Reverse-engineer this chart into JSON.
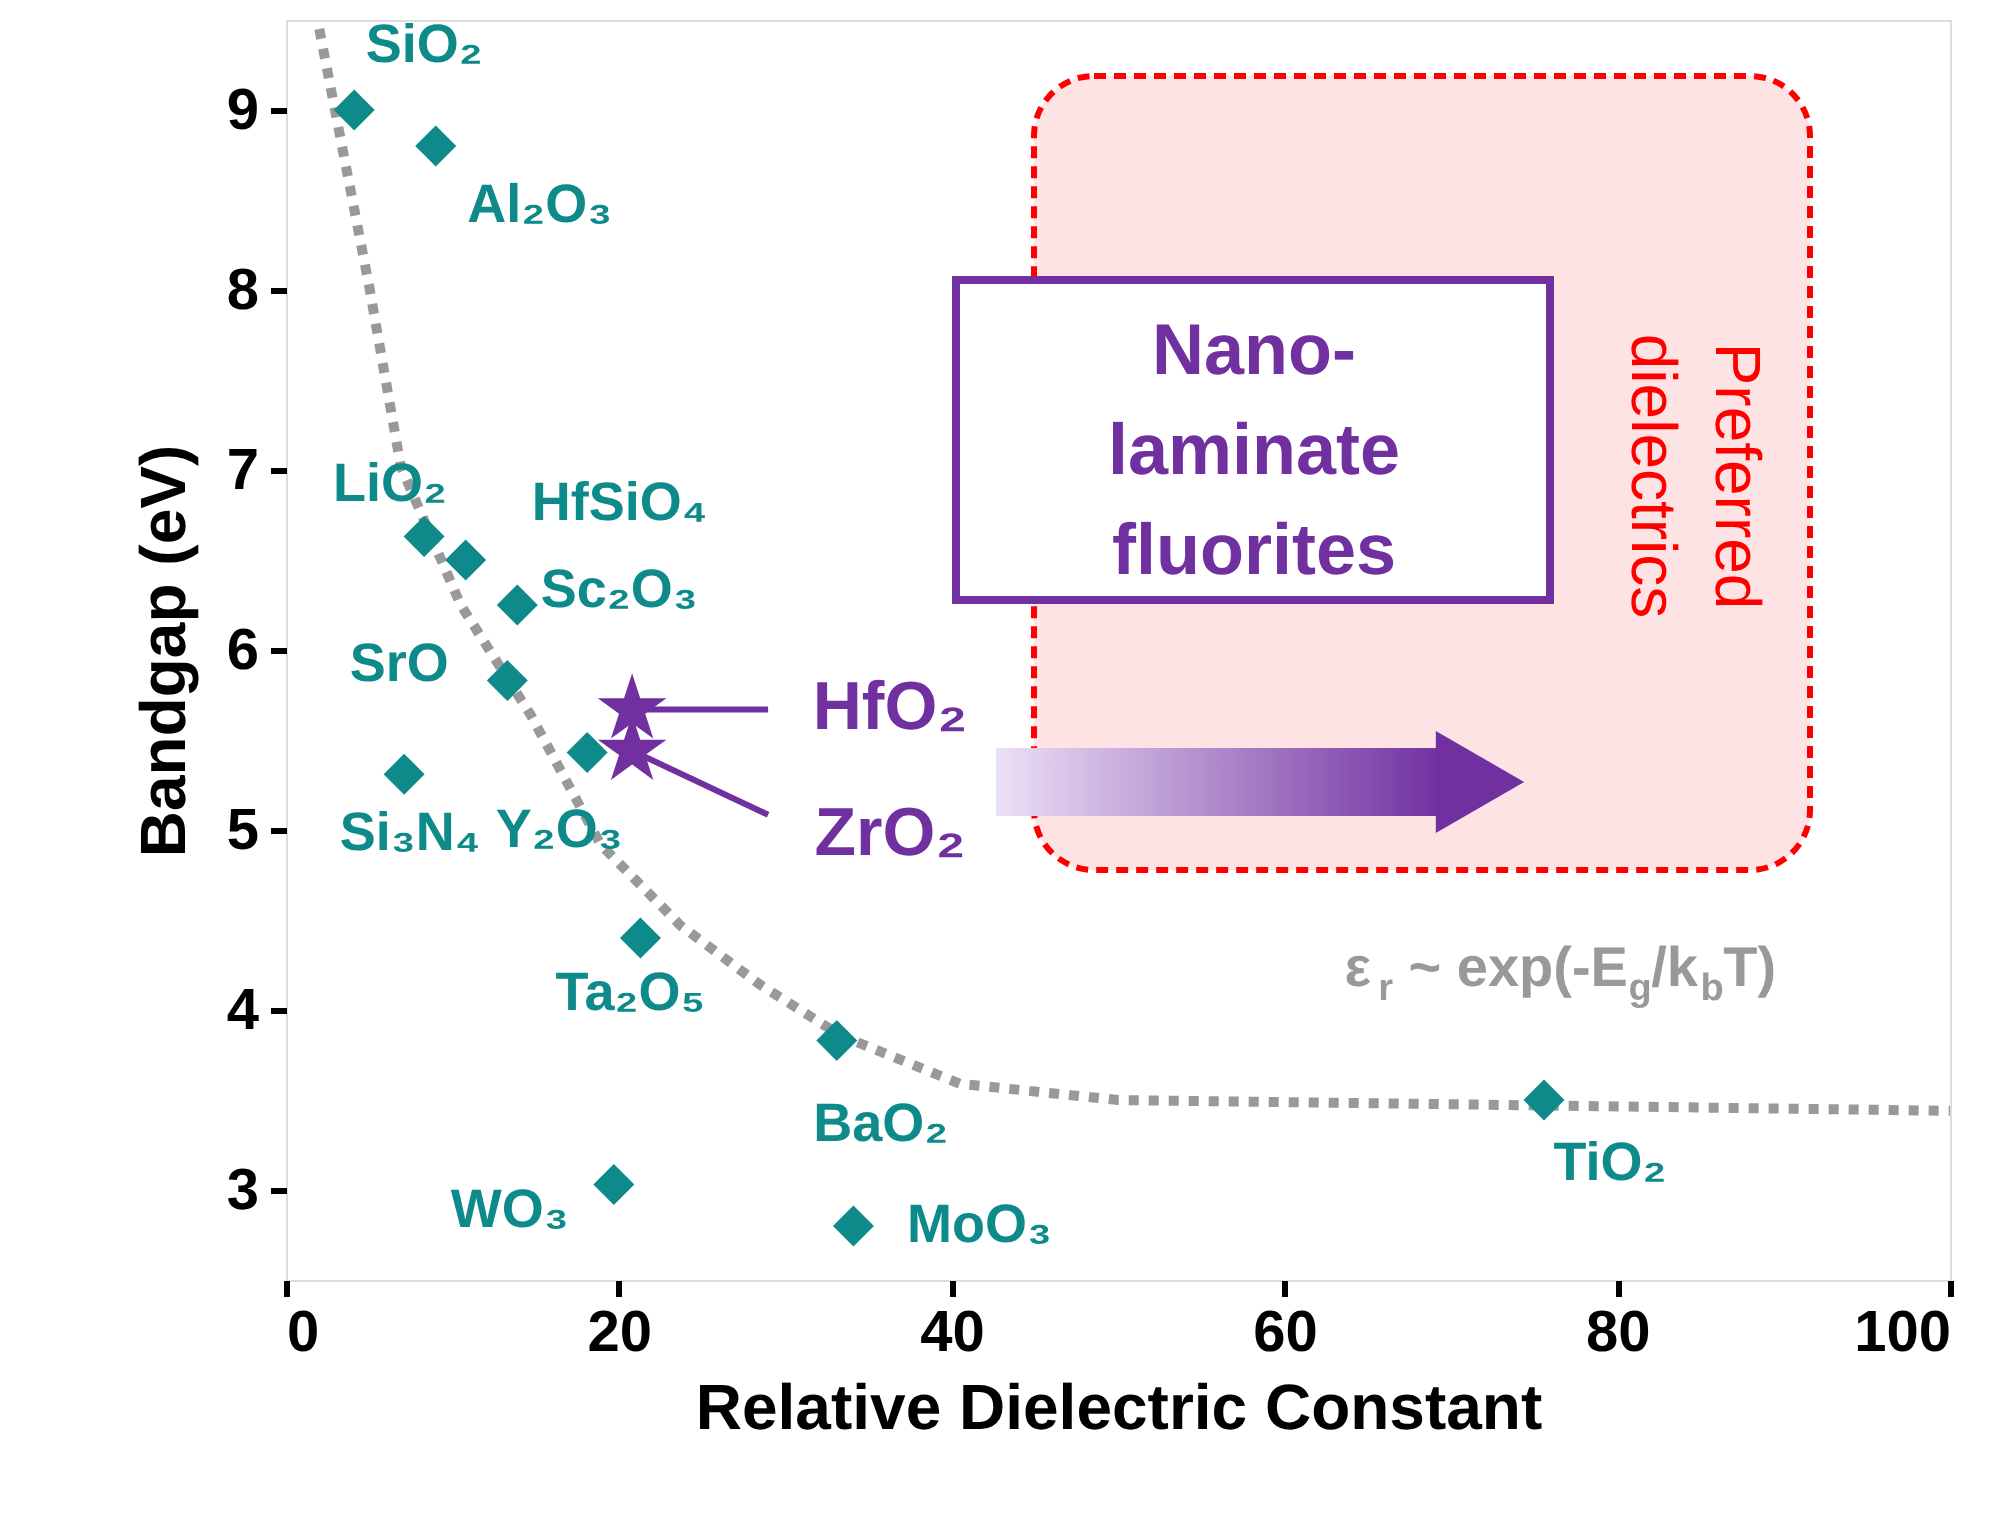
{
  "chart_data": {
    "type": "scatter",
    "xlabel": "Relative Dielectric Constant",
    "ylabel": "Bandgap (eV)",
    "xlim": [
      0,
      100
    ],
    "ylim": [
      2.5,
      9.5
    ],
    "xticks": [
      0,
      20,
      40,
      60,
      80,
      100
    ],
    "yticks": [
      3,
      4,
      5,
      6,
      7,
      8,
      9
    ],
    "grid": false,
    "series": [
      {
        "type": "line",
        "line_style": "dashed",
        "marker": "none",
        "color": "#999999",
        "x": [
          2,
          5,
          6.9,
          10.5,
          14.7,
          18.9,
          23.7,
          28.5,
          33.3,
          40.5,
          50,
          67,
          100
        ],
        "values": [
          9.45,
          8.02,
          7.02,
          6.25,
          5.64,
          4.92,
          4.47,
          4.14,
          3.86,
          3.59,
          3.5,
          3.48,
          3.44
        ]
      },
      {
        "marker": "diamond",
        "color": "#0e8a8a",
        "x": [
          4.1,
          9.0,
          8.3,
          10.8,
          13.9,
          13.3,
          7.1,
          18.1,
          21.3,
          33.1,
          19.7,
          34.1,
          75.6
        ],
        "values": [
          9.0,
          8.8,
          6.63,
          6.5,
          6.25,
          5.83,
          5.31,
          5.43,
          4.4,
          3.83,
          3.03,
          2.8,
          3.5
        ]
      },
      {
        "marker": "star",
        "color": "#7030a0",
        "x": [
          20.8,
          20.8
        ],
        "values": [
          5.67,
          5.44
        ]
      }
    ],
    "annotations": [
      {
        "text": "SiO₂",
        "x": 4.1,
        "y": 9.0
      },
      {
        "text": "Al₂O₃",
        "x": 9.0,
        "y": 8.8
      },
      {
        "text": "LiO₂",
        "x": 8.3,
        "y": 6.63
      },
      {
        "text": "HfSiO₄",
        "x": 10.8,
        "y": 6.5
      },
      {
        "text": "Sc₂O₃",
        "x": 13.9,
        "y": 6.25
      },
      {
        "text": "SrO",
        "x": 13.3,
        "y": 5.83
      },
      {
        "text": "Si₃N₄",
        "x": 7.1,
        "y": 5.31
      },
      {
        "text": "Y₂O₃",
        "x": 18.1,
        "y": 5.43
      },
      {
        "text": "Ta₂O₅",
        "x": 21.3,
        "y": 4.4
      },
      {
        "text": "BaO₂",
        "x": 33.1,
        "y": 3.83
      },
      {
        "text": "WO₃",
        "x": 19.7,
        "y": 3.03
      },
      {
        "text": "MoO₃",
        "x": 34.1,
        "y": 2.8
      },
      {
        "text": "TiO₂",
        "x": 75.6,
        "y": 3.5
      },
      {
        "text": "HfO₂",
        "x": 20.8,
        "y": 5.67
      },
      {
        "text": "ZrO₂",
        "x": 20.8,
        "y": 5.44
      },
      "ε$_{r}$ ~ exp(-E$_{g}$/k$_{b}$T)",
      "Nano-laminate fluorites",
      "Preferred dielectrics"
    ]
  }
}
